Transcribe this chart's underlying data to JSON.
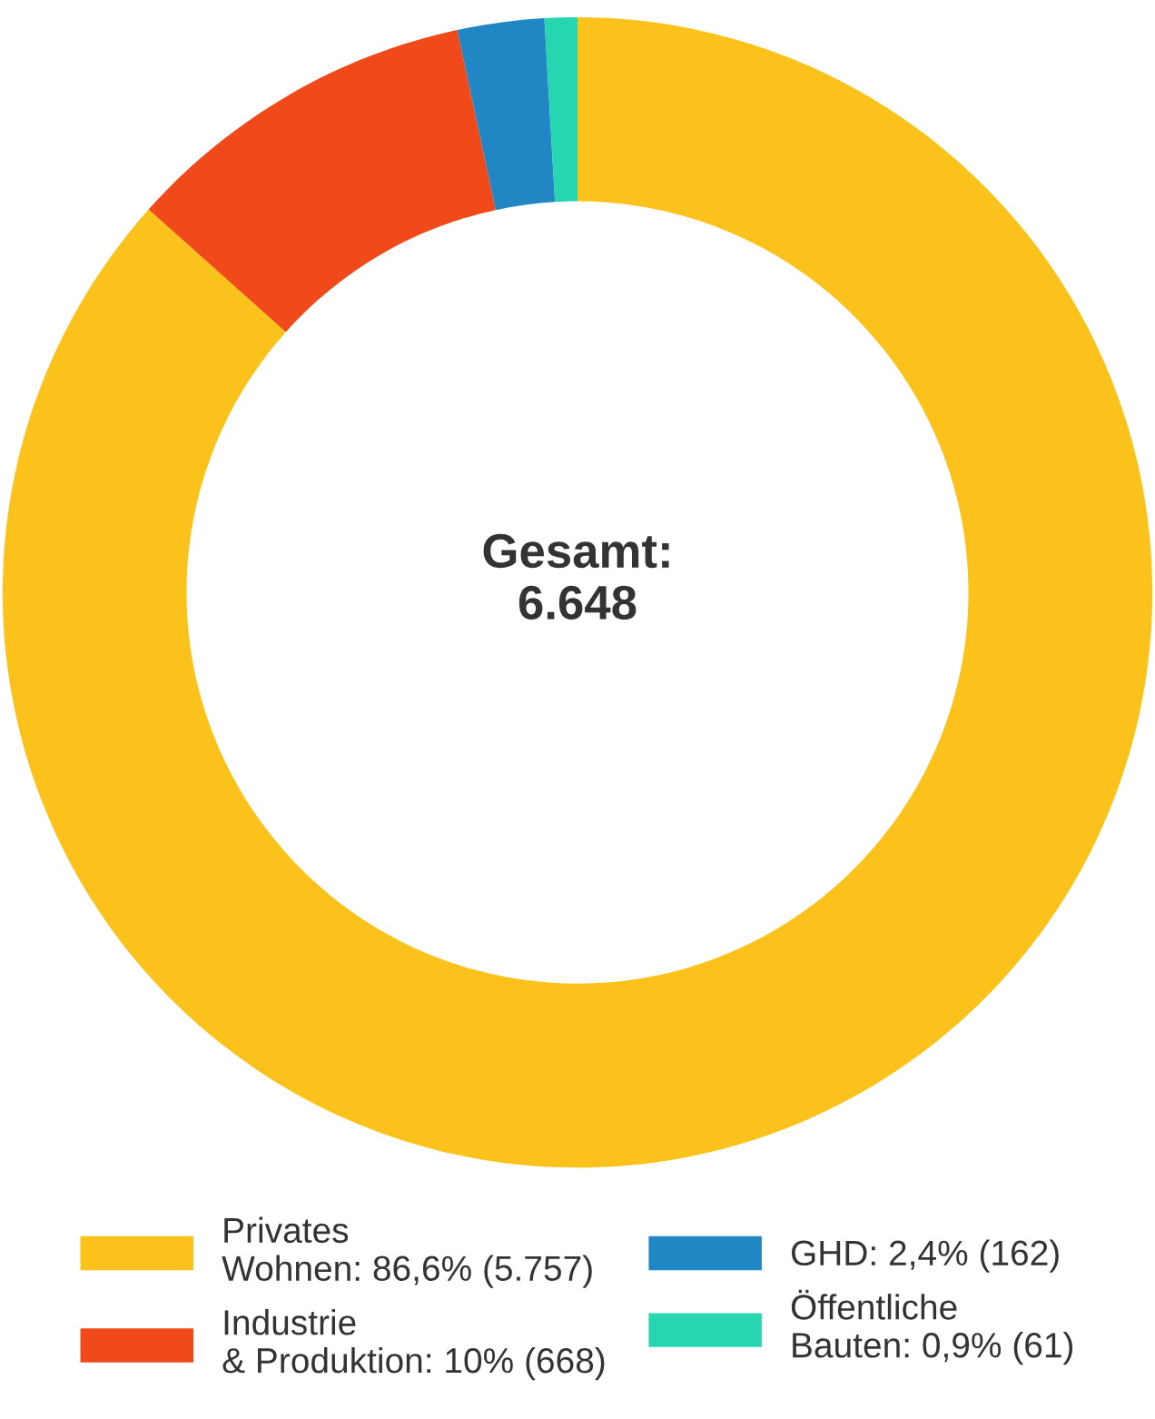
{
  "chart_data": {
    "type": "donut",
    "categories": [
      "Privates\nWohnen: 86,6% (5.757)",
      "Industrie\n& Produktion: 10% (668)",
      "GHD: 2,4% (162)",
      "Öffentliche\nBauten: 0,9% (61)"
    ],
    "values": [
      5757,
      668,
      162,
      61
    ],
    "colors": [
      "#fcc21c",
      "#f04a1a",
      "#2186c4",
      "#26d6b0"
    ],
    "annotations": [
      "Gesamt:\n6.648"
    ],
    "legend": "bottom"
  }
}
